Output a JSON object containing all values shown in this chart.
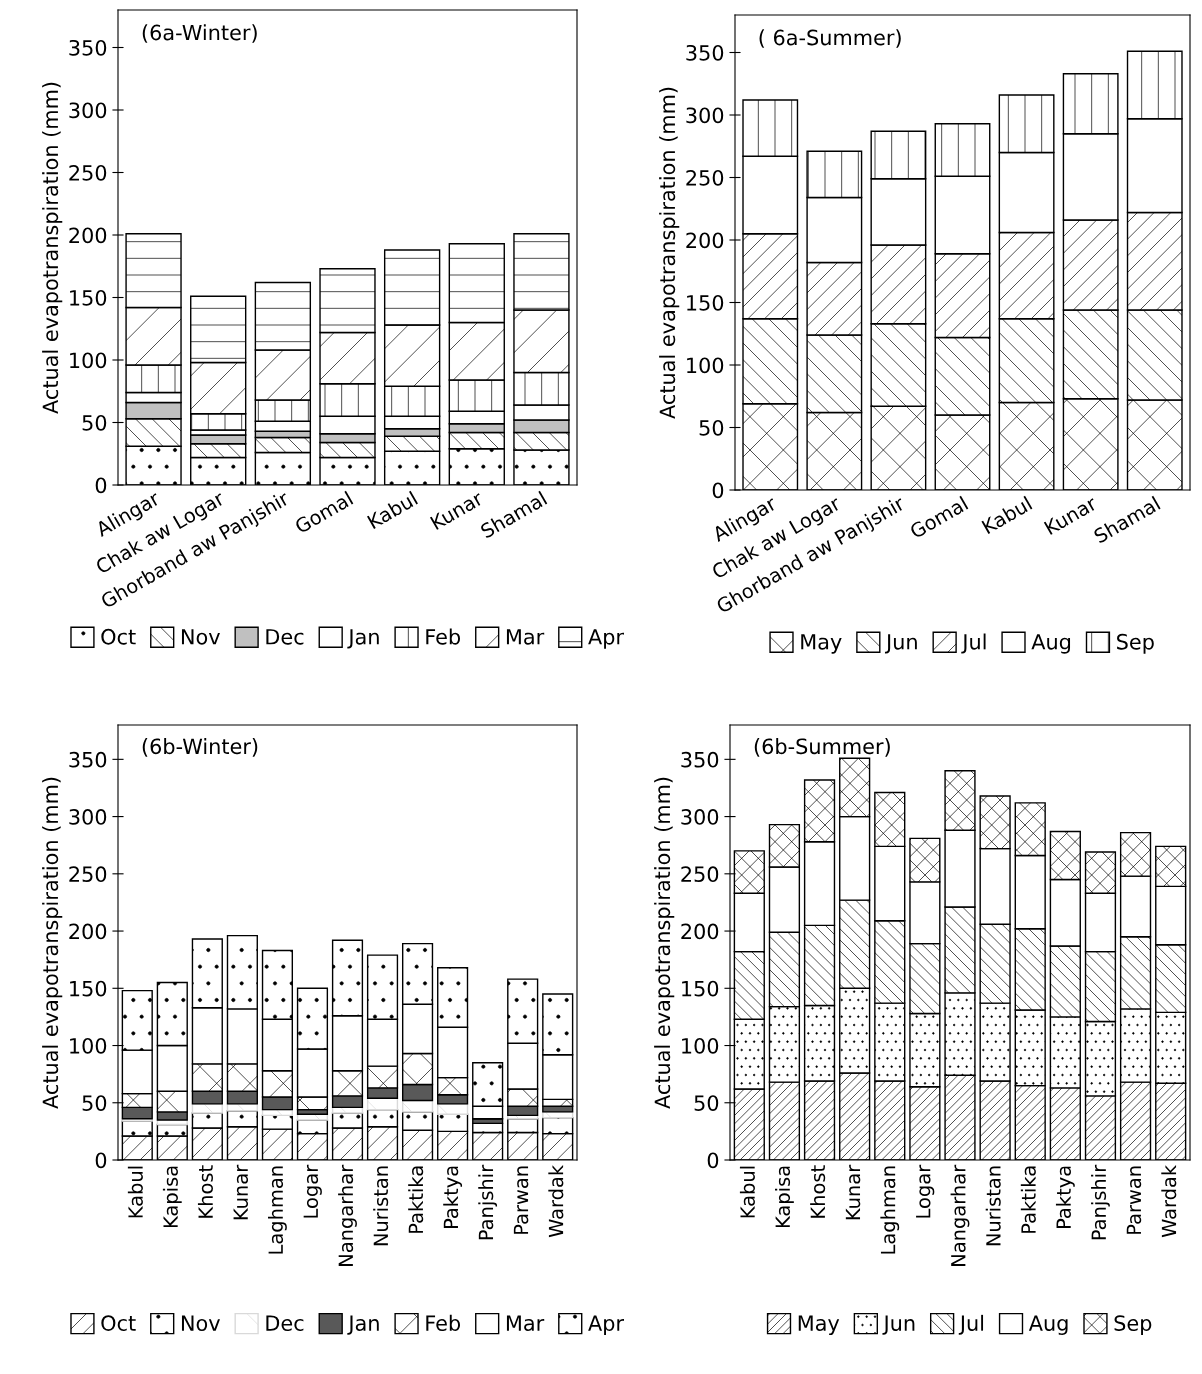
{
  "chart_data": [
    {
      "type": "bar",
      "title": "(6a-Winter)",
      "ylabel": "Actual evapotranspiration (mm)",
      "stacked": true,
      "legend": "bottom",
      "grid": false,
      "categories": [
        "Alingar",
        "Chak aw Logar",
        "Ghorband aw Panjshir",
        "Gomal",
        "Kabul",
        "Kunar",
        "Shamal"
      ],
      "ylim": [
        0,
        380
      ],
      "yticks": [
        0,
        50,
        100,
        150,
        200,
        250,
        300,
        350
      ],
      "series": [
        {
          "name": "Oct",
          "color": "#000000",
          "values": [
            31,
            22,
            26,
            22,
            27,
            29,
            28
          ]
        },
        {
          "name": "Nov",
          "color": "#000000",
          "values": [
            22,
            11,
            12,
            12,
            12,
            13,
            14
          ]
        },
        {
          "name": "Dec",
          "color": "#c0c0c0",
          "values": [
            13,
            7,
            5,
            7,
            6,
            7,
            10
          ]
        },
        {
          "name": "Jan",
          "color": "#ffffff",
          "values": [
            8,
            4,
            8,
            14,
            10,
            10,
            12
          ]
        },
        {
          "name": "Feb",
          "color": "#000000",
          "values": [
            22,
            13,
            17,
            26,
            24,
            25,
            26
          ]
        },
        {
          "name": "Mar",
          "color": "#000000",
          "values": [
            46,
            41,
            40,
            41,
            49,
            46,
            50
          ]
        },
        {
          "name": "Apr",
          "color": "#000000",
          "values": [
            59,
            53,
            54,
            51,
            60,
            63,
            61
          ]
        }
      ]
    },
    {
      "type": "bar",
      "title": "( 6a-Summer)",
      "ylabel": "Actual evapotranspiration (mm)",
      "stacked": true,
      "legend": "bottom",
      "grid": false,
      "categories": [
        "Alingar",
        "Chak aw Logar",
        "Ghorband aw Panjshir",
        "Gomal",
        "Kabul",
        "Kunar",
        "Shamal"
      ],
      "ylim": [
        0,
        380
      ],
      "yticks": [
        0,
        50,
        100,
        150,
        200,
        250,
        300,
        350
      ],
      "series": [
        {
          "name": "May",
          "color": "#000000",
          "values": [
            69,
            62,
            67,
            60,
            70,
            73,
            72
          ]
        },
        {
          "name": "Jun",
          "color": "#000000",
          "values": [
            68,
            62,
            66,
            62,
            67,
            71,
            72
          ]
        },
        {
          "name": "Jul",
          "color": "#000000",
          "values": [
            68,
            58,
            63,
            67,
            69,
            72,
            78
          ]
        },
        {
          "name": "Aug",
          "color": "#ffffff",
          "values": [
            62,
            52,
            53,
            62,
            64,
            69,
            75
          ]
        },
        {
          "name": "Sep",
          "color": "#000000",
          "values": [
            45,
            37,
            38,
            42,
            46,
            48,
            54
          ]
        }
      ]
    },
    {
      "type": "bar",
      "title": "(6b-Winter)",
      "ylabel": "Actual evapotranspiration (mm)",
      "stacked": true,
      "legend": "bottom",
      "grid": false,
      "categories": [
        "Kabul",
        "Kapisa",
        "Khost",
        "Kunar",
        "Laghman",
        "Logar",
        "Nangarhar",
        "Nuristan",
        "Paktika",
        "Paktya",
        "Panjshir",
        "Parwan",
        "Wardak"
      ],
      "ylim": [
        0,
        380
      ],
      "yticks": [
        0,
        50,
        100,
        150,
        200,
        250,
        300,
        350
      ],
      "series": [
        {
          "name": "Oct",
          "color": "#000000",
          "values": [
            21,
            21,
            28,
            29,
            27,
            23,
            28,
            29,
            26,
            25,
            24,
            24,
            23
          ]
        },
        {
          "name": "Nov",
          "color": "#000000",
          "values": [
            13,
            10,
            13,
            14,
            12,
            12,
            13,
            15,
            16,
            15,
            8,
            12,
            14
          ]
        },
        {
          "name": "Dec",
          "color": "#d9d9d9",
          "values": [
            2,
            4,
            8,
            6,
            5,
            5,
            5,
            10,
            10,
            9,
            0,
            3,
            5
          ]
        },
        {
          "name": "Jan",
          "color": "#595959",
          "values": [
            10,
            7,
            11,
            11,
            11,
            4,
            10,
            9,
            14,
            8,
            4,
            8,
            5
          ]
        },
        {
          "name": "Feb",
          "color": "#000000",
          "values": [
            12,
            18,
            24,
            24,
            23,
            11,
            22,
            19,
            27,
            15,
            0,
            15,
            6
          ]
        },
        {
          "name": "Mar",
          "color": "#ffffff",
          "values": [
            38,
            40,
            49,
            48,
            45,
            42,
            48,
            41,
            43,
            44,
            11,
            40,
            39
          ]
        },
        {
          "name": "Apr",
          "color": "#000000",
          "values": [
            52,
            55,
            60,
            64,
            60,
            53,
            66,
            56,
            53,
            52,
            38,
            56,
            53
          ]
        }
      ]
    },
    {
      "type": "bar",
      "title": "(6b-Summer)",
      "ylabel": "Actual evapotranspiration (mm)",
      "stacked": true,
      "legend": "bottom",
      "grid": false,
      "categories": [
        "Kabul",
        "Kapisa",
        "Khost",
        "Kunar",
        "Laghman",
        "Logar",
        "Nangarhar",
        "Nuristan",
        "Paktika",
        "Paktya",
        "Panjshir",
        "Parwan",
        "Wardak"
      ],
      "ylim": [
        0,
        380
      ],
      "yticks": [
        0,
        50,
        100,
        150,
        200,
        250,
        300,
        350
      ],
      "series": [
        {
          "name": "May",
          "color": "#000000",
          "values": [
            62,
            68,
            69,
            76,
            69,
            64,
            74,
            69,
            65,
            63,
            56,
            68,
            67
          ]
        },
        {
          "name": "Jun",
          "color": "#000000",
          "values": [
            61,
            66,
            66,
            74,
            68,
            64,
            72,
            68,
            66,
            62,
            65,
            64,
            62
          ]
        },
        {
          "name": "Jul",
          "color": "#000000",
          "values": [
            59,
            65,
            70,
            77,
            72,
            61,
            75,
            69,
            71,
            62,
            61,
            63,
            59
          ]
        },
        {
          "name": "Aug",
          "color": "#ffffff",
          "values": [
            51,
            57,
            73,
            73,
            65,
            54,
            67,
            66,
            64,
            58,
            51,
            53,
            51
          ]
        },
        {
          "name": "Sep",
          "color": "#000000",
          "values": [
            37,
            37,
            54,
            51,
            47,
            38,
            52,
            46,
            46,
            42,
            36,
            38,
            35
          ]
        }
      ]
    }
  ]
}
